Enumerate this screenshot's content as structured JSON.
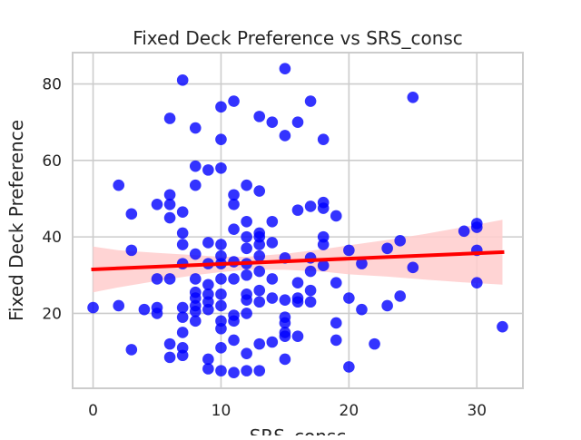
{
  "chart_data": {
    "type": "scatter",
    "title": "Fixed Deck Preference vs SRS_consc",
    "xlabel": "SRS_consc",
    "ylabel": "Fixed Deck Preference",
    "xlim": [
      -1.6,
      33.6
    ],
    "ylim": [
      0.4,
      88.2
    ],
    "xticks": [
      0,
      10,
      20,
      30
    ],
    "yticks": [
      20,
      40,
      60,
      80
    ],
    "grid": true,
    "colors": {
      "points": "#0000ff",
      "regression_line": "#ff0000",
      "confidence_band": "#ffcccc",
      "grid": "#cccccc",
      "axes": "#cccccc"
    },
    "regression": {
      "x": [
        0,
        32
      ],
      "y": [
        31.5,
        36.0
      ]
    },
    "confidence_band": {
      "x": [
        0,
        2,
        5,
        8,
        10,
        12,
        15,
        18,
        20,
        23,
        26,
        29,
        32
      ],
      "upper": [
        37.5,
        36.5,
        35.8,
        35.2,
        34.8,
        34.8,
        35.6,
        36.8,
        37.8,
        39.2,
        40.8,
        42.6,
        44.5
      ],
      "lower": [
        25.5,
        26.8,
        28.5,
        30.0,
        30.8,
        31.4,
        31.4,
        30.9,
        30.2,
        29.6,
        28.8,
        28.1,
        27.5
      ]
    },
    "points": {
      "x": [
        0,
        2,
        2,
        3,
        3,
        3,
        4,
        5,
        5,
        5,
        5,
        6,
        6,
        6,
        6,
        6,
        6,
        6,
        7,
        7,
        7,
        7,
        7,
        7,
        7,
        7,
        7,
        7,
        8,
        8,
        8,
        8,
        8,
        8,
        8,
        8,
        8,
        8,
        9,
        9,
        9,
        9,
        9,
        9,
        9,
        9,
        9,
        10,
        10,
        10,
        10,
        10,
        10,
        10,
        10,
        10,
        10,
        10,
        10,
        10,
        11,
        11,
        11,
        11,
        11,
        11,
        11,
        11,
        11,
        11,
        12,
        12,
        12,
        12,
        12,
        12,
        12,
        12,
        12,
        12,
        12,
        13,
        13,
        13,
        13,
        13,
        13,
        13,
        13,
        13,
        13,
        13,
        14,
        14,
        14,
        14,
        14,
        14,
        15,
        15,
        15,
        15,
        15,
        15,
        15,
        15,
        15,
        16,
        16,
        16,
        16,
        16,
        16,
        17,
        17,
        17,
        17,
        17,
        17,
        18,
        18,
        18,
        18,
        18,
        18,
        19,
        19,
        19,
        19,
        20,
        20,
        20,
        21,
        21,
        22,
        23,
        23,
        24,
        24,
        25,
        25,
        29,
        30,
        30,
        30,
        30,
        32
      ],
      "y": [
        21.5,
        53.5,
        22,
        46,
        36.5,
        10.5,
        21,
        48.5,
        29,
        21.5,
        20,
        71,
        51,
        45,
        29,
        12,
        8.5,
        48.5,
        81,
        46.5,
        41,
        38,
        33,
        21.5,
        19,
        15,
        11,
        9,
        68.5,
        58.5,
        53.5,
        35.5,
        29,
        25.5,
        24,
        22,
        20.5,
        18,
        57.5,
        38.5,
        33,
        27.5,
        25,
        23,
        21,
        8,
        5.5,
        74,
        65.5,
        58,
        38,
        35,
        33,
        29,
        25,
        22,
        18,
        16,
        11,
        5,
        75.5,
        51,
        48.5,
        42,
        33.5,
        29,
        19.5,
        18,
        13,
        4.5,
        53.5,
        44,
        40,
        37,
        33,
        30,
        25,
        23.5,
        20,
        9.5,
        5,
        71.5,
        52,
        41,
        40,
        38,
        35,
        31,
        26,
        23,
        12,
        5,
        70,
        44,
        38.5,
        29,
        24,
        12.5,
        84,
        66.5,
        34.5,
        23.5,
        19,
        17.5,
        15,
        14,
        8,
        70,
        47,
        28,
        24,
        23,
        14,
        75.5,
        48,
        34.5,
        31,
        26,
        23,
        65.5,
        49,
        47.5,
        40,
        38,
        32.5,
        45.5,
        28,
        17.5,
        13,
        36.5,
        24,
        6,
        33,
        21,
        12,
        37,
        22,
        39,
        24.5,
        76.5,
        32,
        41.5,
        43.5,
        42.5,
        36.5,
        28,
        16.5
      ]
    }
  }
}
